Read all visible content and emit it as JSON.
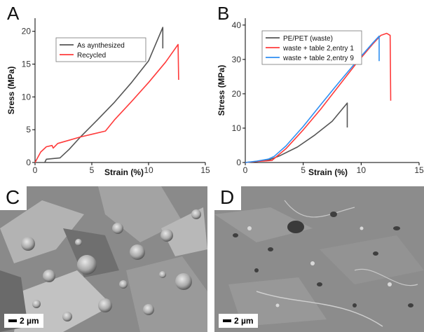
{
  "panels": {
    "a": {
      "letter": "A"
    },
    "b": {
      "letter": "B"
    },
    "c": {
      "letter": "C",
      "scale_label": "2 µm"
    },
    "d": {
      "letter": "D",
      "scale_label": "2 µm"
    }
  },
  "colors": {
    "gray": "#555555",
    "red": "#ff3b3b",
    "blue": "#2f8ff2",
    "sem_bg": "#7d7d7d"
  },
  "chart_data": [
    {
      "type": "line",
      "panel": "A",
      "xlabel": "Strain (%)",
      "ylabel": "Sress (MPa)",
      "xlim": [
        0,
        15
      ],
      "ylim": [
        0,
        22
      ],
      "xticks": [
        0,
        5,
        10,
        15
      ],
      "yticks": [
        0,
        5,
        10,
        15,
        20
      ],
      "grid": false,
      "legend_position": "top-right",
      "series": [
        {
          "name": "As aynthesized",
          "color": "#555555",
          "points": [
            [
              0,
              0
            ],
            [
              0.85,
              0
            ],
            [
              1.0,
              0.5
            ],
            [
              2.2,
              0.7
            ],
            [
              3.0,
              2.0
            ],
            [
              4.0,
              3.9
            ],
            [
              5.5,
              6.5
            ],
            [
              7.0,
              9.2
            ],
            [
              8.5,
              12.2
            ],
            [
              10.0,
              15.5
            ],
            [
              11.25,
              20.6
            ],
            [
              11.25,
              17.4
            ]
          ]
        },
        {
          "name": "Recycled",
          "color": "#ff3b3b",
          "points": [
            [
              0,
              0
            ],
            [
              0.5,
              1.6
            ],
            [
              1.0,
              2.4
            ],
            [
              1.5,
              2.6
            ],
            [
              1.6,
              2.2
            ],
            [
              2.0,
              2.9
            ],
            [
              3.0,
              3.4
            ],
            [
              4.0,
              3.9
            ],
            [
              5.0,
              4.3
            ],
            [
              6.2,
              4.8
            ],
            [
              7.0,
              6.5
            ],
            [
              8.5,
              9.3
            ],
            [
              10.0,
              12.2
            ],
            [
              11.5,
              15.3
            ],
            [
              12.6,
              18.0
            ],
            [
              12.65,
              12.6
            ]
          ]
        }
      ]
    },
    {
      "type": "line",
      "panel": "B",
      "xlabel": "Strain (%)",
      "ylabel": "Stress (MPa)",
      "xlim": [
        0,
        15
      ],
      "ylim": [
        0,
        42
      ],
      "xticks": [
        0,
        5,
        10,
        15
      ],
      "yticks": [
        0,
        10,
        20,
        30,
        40
      ],
      "grid": false,
      "legend_position": "top-left",
      "series": [
        {
          "name": "PE/PET (waste)",
          "color": "#555555",
          "points": [
            [
              0,
              0
            ],
            [
              1.0,
              0.3
            ],
            [
              2.0,
              0.7
            ],
            [
              3.0,
              2.0
            ],
            [
              4.5,
              4.5
            ],
            [
              6.0,
              8.0
            ],
            [
              7.5,
              12.0
            ],
            [
              8.8,
              17.3
            ],
            [
              8.8,
              10.2
            ]
          ]
        },
        {
          "name": "waste + table 2,entry 1",
          "color": "#ff3b3b",
          "points": [
            [
              0,
              0
            ],
            [
              1.0,
              0.3
            ],
            [
              2.0,
              0.5
            ],
            [
              2.3,
              0.6
            ],
            [
              3.5,
              4.0
            ],
            [
              5.0,
              9.5
            ],
            [
              6.5,
              15.5
            ],
            [
              8.0,
              22.0
            ],
            [
              9.5,
              28.5
            ],
            [
              11.0,
              34.5
            ],
            [
              11.7,
              37.0
            ],
            [
              12.2,
              37.6
            ],
            [
              12.5,
              37.0
            ],
            [
              12.55,
              18.0
            ]
          ]
        },
        {
          "name": "waste + table 2,entry 9",
          "color": "#2f8ff2",
          "points": [
            [
              0,
              0
            ],
            [
              1.0,
              0.4
            ],
            [
              2.0,
              1.0
            ],
            [
              2.5,
              1.8
            ],
            [
              3.5,
              4.8
            ],
            [
              5.0,
              10.5
            ],
            [
              6.5,
              16.8
            ],
            [
              8.0,
              23.0
            ],
            [
              9.5,
              29.0
            ],
            [
              11.0,
              34.8
            ],
            [
              11.55,
              36.8
            ],
            [
              11.55,
              29.5
            ]
          ]
        }
      ]
    }
  ]
}
